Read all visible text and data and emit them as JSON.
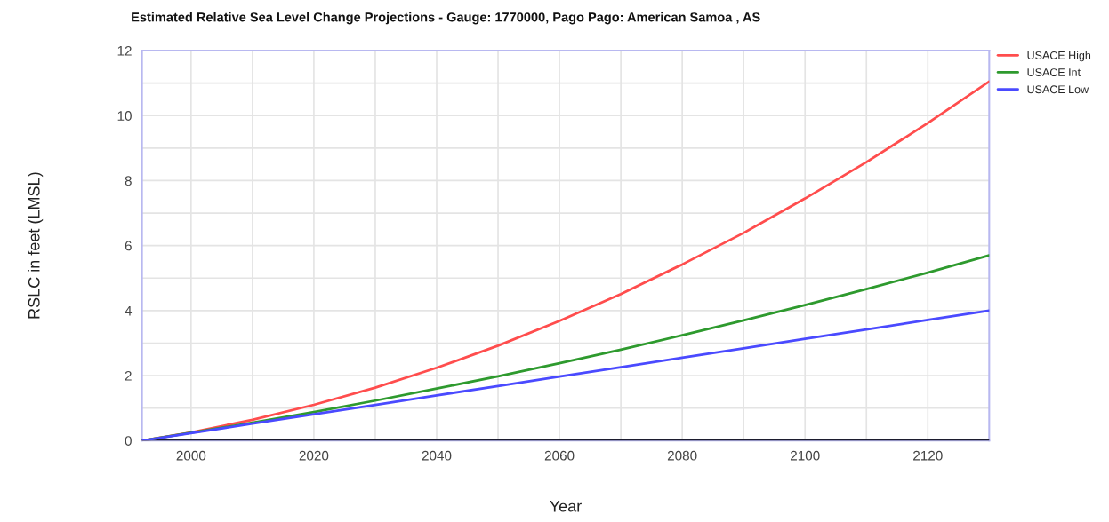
{
  "chart_data": {
    "type": "line",
    "title": "Estimated Relative Sea Level Change Projections - Gauge: 1770000, Pago Pago: American Samoa , AS",
    "xlabel": "Year",
    "ylabel": "RSLC in feet (LMSL)",
    "x": [
      1992,
      2000,
      2010,
      2020,
      2030,
      2040,
      2050,
      2060,
      2070,
      2080,
      2090,
      2100,
      2110,
      2120,
      2130
    ],
    "series": [
      {
        "name": "USACE High",
        "color": "#ff4d4d",
        "values": [
          0,
          0.25,
          0.64,
          1.1,
          1.63,
          2.24,
          2.92,
          3.68,
          4.51,
          5.42,
          6.39,
          7.45,
          8.57,
          9.77,
          11.05
        ]
      },
      {
        "name": "USACE Int",
        "color": "#2e9a2e",
        "values": [
          0,
          0.24,
          0.55,
          0.88,
          1.23,
          1.6,
          1.98,
          2.38,
          2.8,
          3.24,
          3.7,
          4.17,
          4.66,
          5.17,
          5.7
        ]
      },
      {
        "name": "USACE Low",
        "color": "#4a4aff",
        "values": [
          0,
          0.23,
          0.52,
          0.81,
          1.1,
          1.39,
          1.68,
          1.97,
          2.26,
          2.55,
          2.84,
          3.13,
          3.42,
          3.71,
          4.0
        ]
      }
    ],
    "xlim": [
      1992,
      2130
    ],
    "xticks": [
      2000,
      {
        "value": 2010,
        "label": null
      },
      2020,
      {
        "value": 2030,
        "label": null
      },
      2040,
      {
        "value": 2050,
        "label": null
      },
      2060,
      {
        "value": 2070,
        "label": null
      },
      2080,
      {
        "value": 2090,
        "label": null
      },
      2100,
      {
        "value": 2110,
        "label": null
      },
      2120
    ],
    "ylim": [
      0,
      12
    ],
    "yticks": [
      0,
      {
        "value": 1,
        "label": null
      },
      2,
      {
        "value": 3,
        "label": null
      },
      4,
      {
        "value": 5,
        "label": null
      },
      6,
      {
        "value": 7,
        "label": null
      },
      8,
      {
        "value": 9,
        "label": null
      },
      10,
      {
        "value": 11,
        "label": null
      },
      12
    ],
    "ref_lines": [
      {
        "axis": "y",
        "value": 0,
        "color": "#1c1c2e"
      }
    ],
    "grid": true,
    "legend": "top right",
    "marker": "none",
    "line_style": "solid"
  }
}
